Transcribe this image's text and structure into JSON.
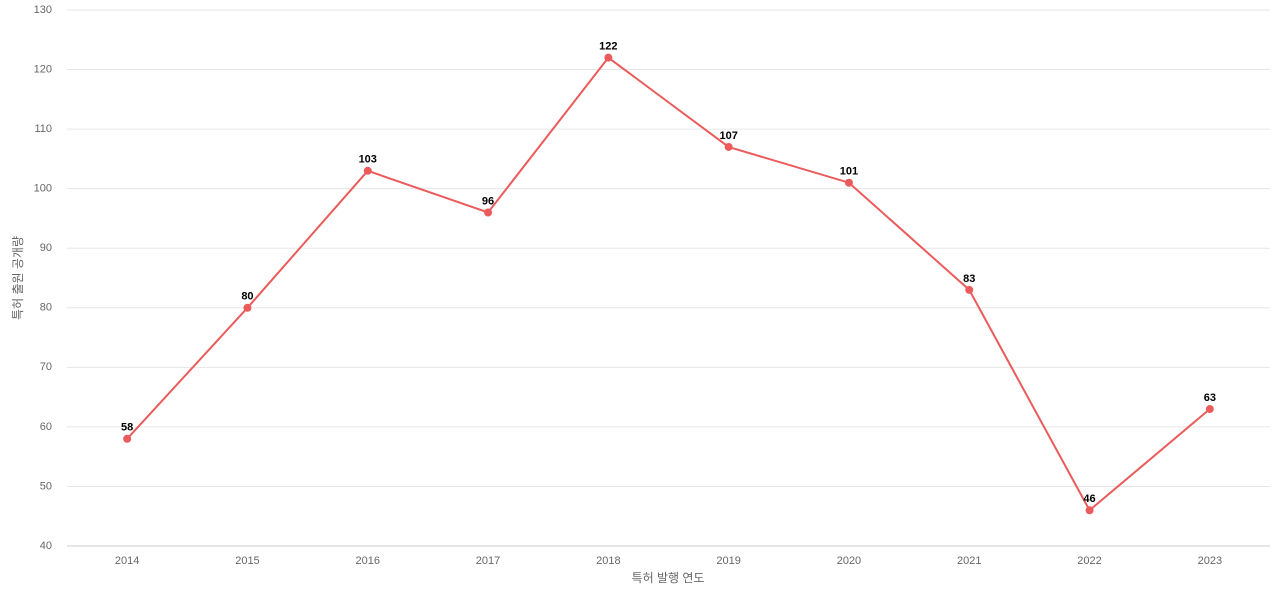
{
  "chart_data": {
    "type": "line",
    "x_label": "특허 발행 연도",
    "y_label": "특허 출원 공개량",
    "categories": [
      "2014",
      "2015",
      "2016",
      "2017",
      "2018",
      "2019",
      "2020",
      "2021",
      "2022",
      "2023"
    ],
    "series": [
      {
        "color": "#ec5b5b",
        "values": [
          58,
          80,
          103,
          96,
          122,
          107,
          101,
          83,
          46,
          63
        ]
      }
    ],
    "ylim": [
      40,
      130
    ],
    "yticks": [
      40,
      50,
      60,
      70,
      80,
      90,
      100,
      110,
      120,
      130
    ],
    "grid": true
  }
}
